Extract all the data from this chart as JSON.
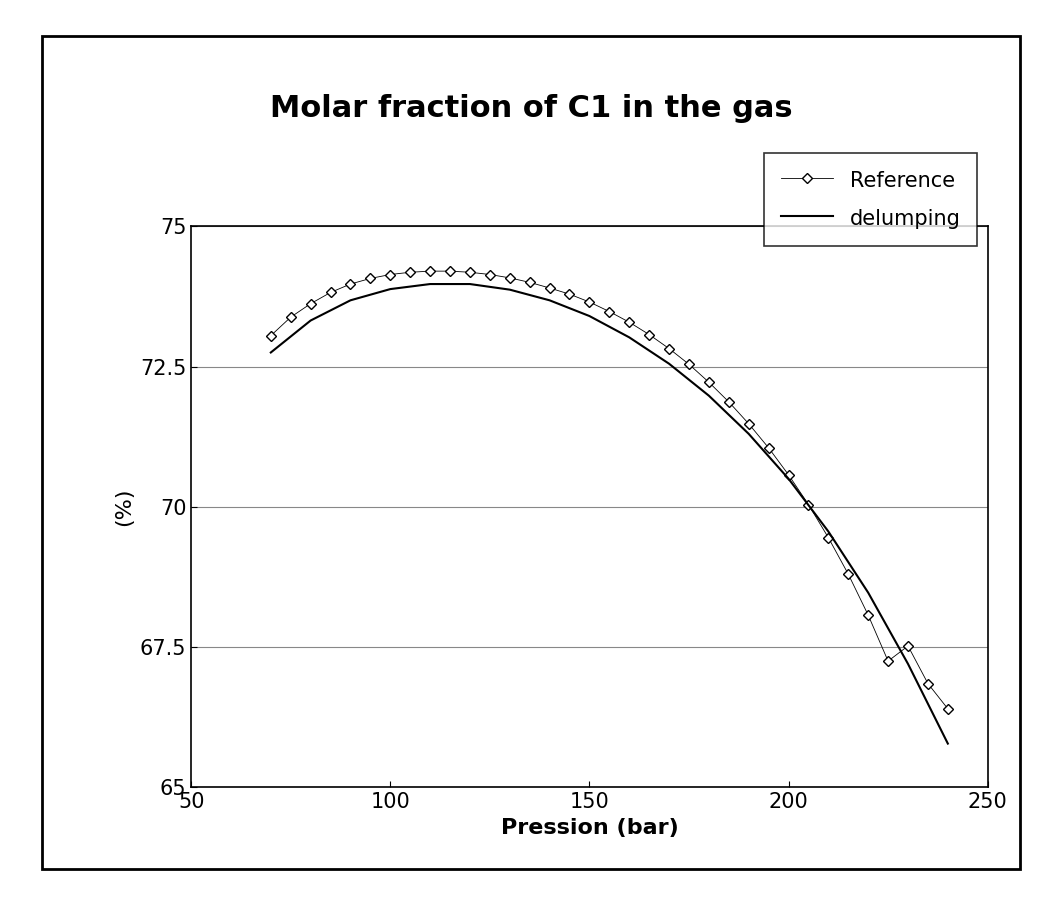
{
  "title": "Molar fraction of C1 in the gas",
  "xlabel": "Pression (bar)",
  "ylabel": "(%)",
  "xlim": [
    50,
    250
  ],
  "ylim": [
    65,
    75
  ],
  "xticks": [
    50,
    100,
    150,
    200,
    250
  ],
  "yticks": [
    65,
    67.5,
    70,
    72.5,
    75
  ],
  "background_color": "#ffffff",
  "line_color": "#000000",
  "marker_color": "#000000",
  "ref_x": [
    70,
    75,
    80,
    85,
    90,
    95,
    100,
    105,
    110,
    115,
    120,
    125,
    130,
    135,
    140,
    145,
    150,
    155,
    160,
    165,
    170,
    175,
    180,
    185,
    190,
    195,
    200,
    205,
    210,
    215,
    220,
    225,
    230,
    235,
    240
  ],
  "ref_y": [
    73.05,
    73.38,
    73.62,
    73.82,
    73.97,
    74.07,
    74.14,
    74.18,
    74.2,
    74.2,
    74.18,
    74.14,
    74.08,
    74.0,
    73.9,
    73.79,
    73.65,
    73.48,
    73.29,
    73.07,
    72.82,
    72.54,
    72.22,
    71.87,
    71.48,
    71.05,
    70.57,
    70.04,
    69.45,
    68.8,
    68.07,
    67.25,
    67.52,
    66.85,
    66.4
  ],
  "line_x": [
    70,
    80,
    90,
    100,
    110,
    120,
    130,
    140,
    150,
    160,
    170,
    180,
    190,
    200,
    210,
    220,
    230,
    240
  ],
  "line_y": [
    72.75,
    73.32,
    73.68,
    73.88,
    73.97,
    73.97,
    73.87,
    73.68,
    73.4,
    73.02,
    72.55,
    71.98,
    71.3,
    70.5,
    69.56,
    68.47,
    67.2,
    65.78
  ],
  "title_fontsize": 22,
  "label_fontsize": 16,
  "tick_fontsize": 15,
  "legend_fontsize": 15
}
